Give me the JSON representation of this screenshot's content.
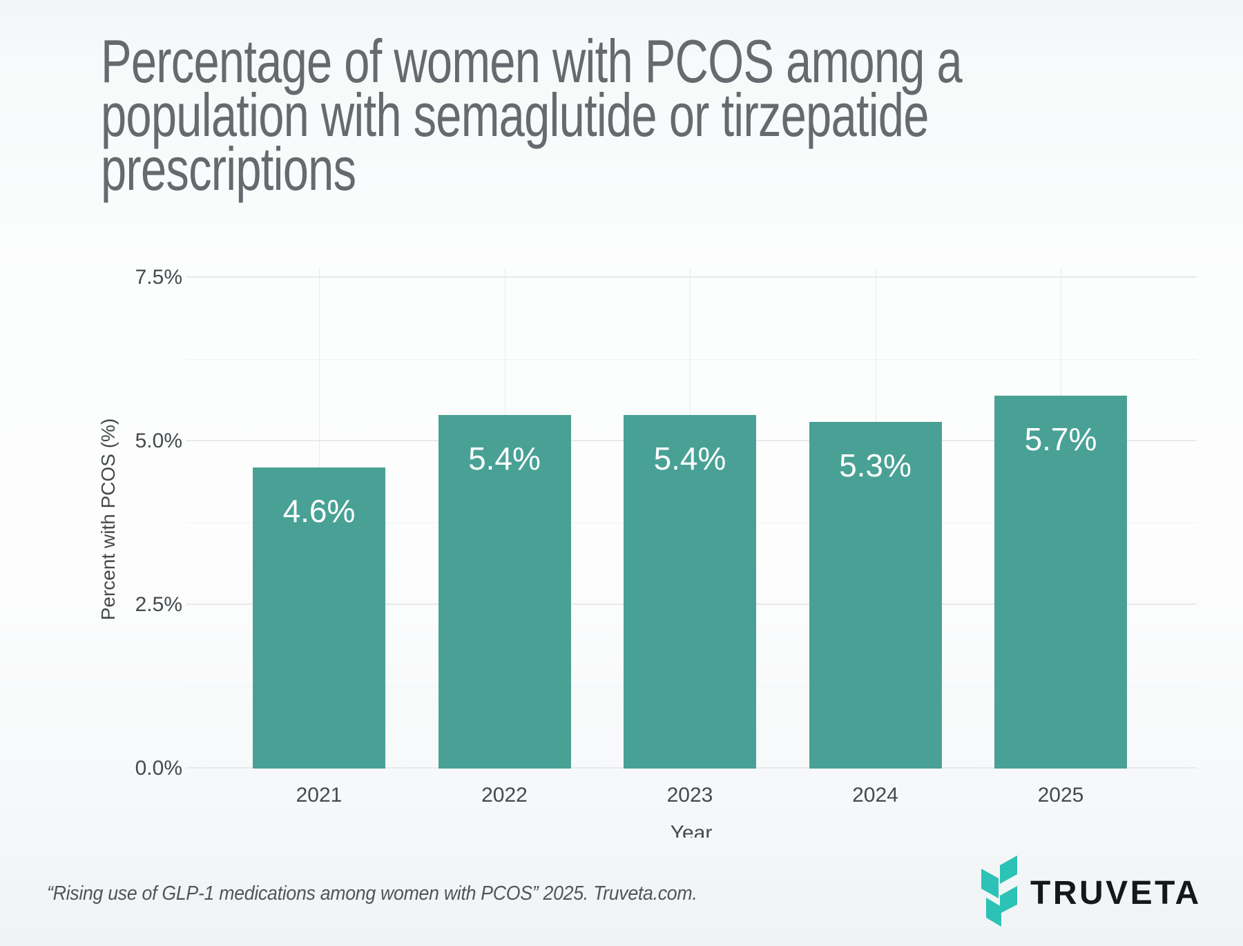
{
  "header": {
    "title_lines": [
      "Percentage of women with PCOS among a",
      "population with semaglutide or tirzepatide",
      "prescriptions"
    ]
  },
  "chart_data": {
    "type": "bar",
    "title": "Percentage of women with PCOS among a population with semaglutide or tirzepatide prescriptions",
    "categories": [
      "2021",
      "2022",
      "2023",
      "2024",
      "2025"
    ],
    "values": [
      4.6,
      5.4,
      5.4,
      5.3,
      5.7
    ],
    "value_labels": [
      "4.6%",
      "5.4%",
      "5.4%",
      "5.3%",
      "5.7%"
    ],
    "xlabel": "Year",
    "ylabel": "Percent with PCOS (%)",
    "ylim": [
      0,
      7.65
    ],
    "yticks": [
      {
        "value": 0,
        "label": "0.0%"
      },
      {
        "value": 2.5,
        "label": "2.5%"
      },
      {
        "value": 5,
        "label": "5.0%"
      },
      {
        "value": 7.5,
        "label": "7.5%"
      }
    ],
    "minor_gridlines": [
      1.25,
      3.75,
      6.25
    ],
    "grid": true,
    "legend": false,
    "bar_color": "#49a195",
    "value_label_color": "#ffffff",
    "axis_text_color": "#45494d"
  },
  "footer": {
    "citation": "“Rising use of GLP-1 medications among women with PCOS” 2025. Truveta.com.",
    "brand_name": "TRUVETA",
    "brand_mark_color": "#2cc2b6",
    "brand_text_color": "#15171c"
  }
}
